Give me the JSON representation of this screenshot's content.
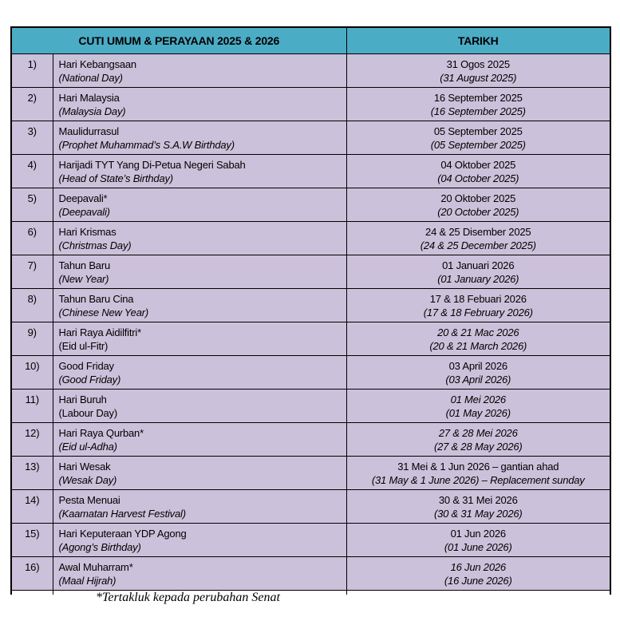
{
  "colors": {
    "header_bg": "#4bacc6",
    "row_bg": "#ccc1da",
    "border": "#000000",
    "text": "#000000",
    "page_bg": "#ffffff"
  },
  "table": {
    "header": {
      "col1": "CUTI UMUM & PERAYAAN 2025 & 2026",
      "col2": "TARIKH"
    },
    "rows": [
      {
        "no": "1)",
        "name_my": "Hari Kebangsaan",
        "name_en": "(National Day)",
        "name_en_italic": true,
        "date_my": "31 Ogos 2025",
        "date_my_italic": false,
        "date_en": "(31 August 2025)",
        "date_en_italic": true
      },
      {
        "no": "2)",
        "name_my": "Hari Malaysia",
        "name_en": "(Malaysia Day)",
        "name_en_italic": true,
        "date_my": "16 September 2025",
        "date_my_italic": false,
        "date_en": "(16 September 2025)",
        "date_en_italic": true
      },
      {
        "no": "3)",
        "name_my": "Maulidurrasul",
        "name_en": "(Prophet Muhammad’s S.A.W Birthday)",
        "name_en_italic": true,
        "date_my": "05 September 2025",
        "date_my_italic": false,
        "date_en": "(05 September 2025)",
        "date_en_italic": true
      },
      {
        "no": "4)",
        "name_my": "Harijadi TYT Yang Di-Petua Negeri Sabah",
        "name_en": "(Head of State’s Birthday)",
        "name_en_italic": true,
        "date_my": "04 Oktober 2025",
        "date_my_italic": false,
        "date_en": "(04 October 2025)",
        "date_en_italic": true
      },
      {
        "no": "5)",
        "name_my": "Deepavali*",
        "name_en": "(Deepavali)",
        "name_en_italic": true,
        "date_my": "20 Oktober 2025",
        "date_my_italic": false,
        "date_en": "(20 October 2025)",
        "date_en_italic": true
      },
      {
        "no": "6)",
        "name_my": "Hari Krismas",
        "name_en": "(Christmas Day)",
        "name_en_italic": true,
        "date_my": "24 & 25 Disember 2025",
        "date_my_italic": false,
        "date_en": "(24 & 25 December 2025)",
        "date_en_italic": true
      },
      {
        "no": "7)",
        "name_my": "Tahun Baru",
        "name_en": "(New Year)",
        "name_en_italic": true,
        "date_my": "01 Januari 2026",
        "date_my_italic": false,
        "date_en": "(01 January 2026)",
        "date_en_italic": true
      },
      {
        "no": "8)",
        "name_my": "Tahun Baru Cina",
        "name_en": "(Chinese New Year)",
        "name_en_italic": true,
        "date_my": "17 & 18 Febuari 2026",
        "date_my_italic": false,
        "date_en": "(17 & 18 February 2026)",
        "date_en_italic": true
      },
      {
        "no": "9)",
        "name_my": "Hari Raya Aidilfitri*",
        "name_en": "(Eid ul-Fitr)",
        "name_en_italic": false,
        "date_my": "20 & 21 Mac 2026",
        "date_my_italic": true,
        "date_en": "(20 & 21 March 2026)",
        "date_en_italic": true
      },
      {
        "no": "10)",
        "name_my": "Good Friday",
        "name_en": "(Good Friday)",
        "name_en_italic": true,
        "date_my": "03 April 2026",
        "date_my_italic": false,
        "date_en": "(03 April 2026)",
        "date_en_italic": true
      },
      {
        "no": "11)",
        "name_my": "Hari Buruh",
        "name_en": "(Labour Day)",
        "name_en_italic": false,
        "date_my": "01 Mei 2026",
        "date_my_italic": true,
        "date_en": "(01 May 2026)",
        "date_en_italic": true
      },
      {
        "no": "12)",
        "name_my": "Hari Raya Qurban*",
        "name_en": "(Eid ul-Adha)",
        "name_en_italic": true,
        "date_my": "27 & 28 Mei 2026",
        "date_my_italic": true,
        "date_en": "(27 & 28 May 2026)",
        "date_en_italic": true
      },
      {
        "no": "13)",
        "name_my": "Hari Wesak",
        "name_en": "(Wesak Day)",
        "name_en_italic": true,
        "date_my": "31 Mei & 1 Jun 2026 – gantian ahad",
        "date_my_italic": false,
        "date_en": "(31 May & 1 June 2026) – Replacement sunday",
        "date_en_italic": true
      },
      {
        "no": "14)",
        "name_my": "Pesta Menuai",
        "name_en": "(Kaamatan Harvest Festival)",
        "name_en_italic": true,
        "date_my": "30 & 31 Mei 2026",
        "date_my_italic": false,
        "date_en": "(30 & 31 May 2026)",
        "date_en_italic": true
      },
      {
        "no": "15)",
        "name_my": "Hari Keputeraan YDP Agong",
        "name_en": "(Agong’s Birthday)",
        "name_en_italic": true,
        "date_my": "01 Jun 2026",
        "date_my_italic": false,
        "date_en": "(01 June 2026)",
        "date_en_italic": true
      },
      {
        "no": "16)",
        "name_my": "Awal Muharram*",
        "name_en": "(Maal Hijrah)",
        "name_en_italic": true,
        "date_my": "16 Jun 2026",
        "date_my_italic": true,
        "date_en": "(16 June 2026)",
        "date_en_italic": true
      }
    ]
  },
  "footer": {
    "note": "*Tertakluk kepada perubahan Senat"
  }
}
